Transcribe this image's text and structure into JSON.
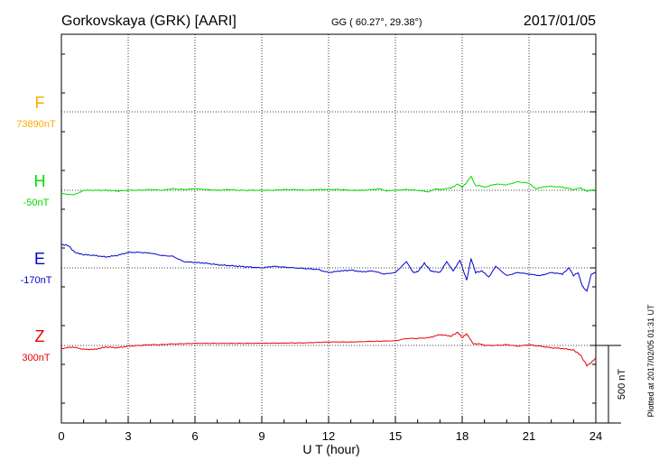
{
  "header": {
    "station": "Gorkovskaya (GRK)  [AARI]",
    "coords": "GG ( 60.27°,  29.38°)",
    "date": "2017/01/05"
  },
  "side_note": "Plotted at 2017/02/05 01:31  UT",
  "scale_label": "500 nT",
  "chart_data": {
    "type": "line",
    "xlabel": "U T (hour)",
    "ylabel": "",
    "xlim": [
      0,
      24
    ],
    "xticks": [
      0,
      3,
      6,
      9,
      12,
      15,
      18,
      21,
      24
    ],
    "xtick_labels": [
      "0",
      "3",
      "6",
      "9",
      "12",
      "15",
      "18",
      "21",
      "24"
    ],
    "scale_bar_nT": 500,
    "grid": true,
    "series": [
      {
        "name": "F",
        "baseline_label": "73890nT",
        "color": "#ffaa00",
        "x": [],
        "values": []
      },
      {
        "name": "H",
        "baseline_label": "-50nT",
        "color": "#00dd00",
        "x": [
          0,
          0.5,
          0.8,
          1,
          1.5,
          2,
          2.5,
          3,
          3.5,
          4,
          4.5,
          5,
          5.5,
          6,
          6.5,
          7,
          7.5,
          8,
          8.5,
          9,
          9.5,
          10,
          10.5,
          11,
          11.5,
          12,
          12.5,
          13,
          13.5,
          14,
          14.3,
          14.6,
          15,
          15.5,
          16,
          16.5,
          16.8,
          17,
          17.5,
          17.8,
          18.0,
          18.2,
          18.4,
          18.6,
          18.8,
          19.0,
          19.5,
          20,
          20.5,
          21,
          21.3,
          21.6,
          22,
          22.5,
          23,
          23.3,
          23.6,
          24
        ],
        "values": [
          -20,
          -30,
          -15,
          0,
          0,
          0,
          -5,
          0,
          0,
          5,
          0,
          10,
          5,
          10,
          5,
          0,
          5,
          0,
          0,
          0,
          0,
          5,
          5,
          0,
          5,
          5,
          5,
          0,
          0,
          5,
          10,
          -5,
          0,
          5,
          0,
          -10,
          10,
          5,
          15,
          40,
          20,
          50,
          90,
          30,
          30,
          20,
          40,
          35,
          55,
          45,
          10,
          20,
          25,
          20,
          5,
          15,
          -5,
          5
        ]
      },
      {
        "name": "E",
        "baseline_label": "-170nT",
        "color": "#0000cc",
        "x": [
          0,
          0.3,
          0.6,
          1,
          1.5,
          2,
          2.5,
          3,
          3.5,
          4,
          4.5,
          5,
          5.5,
          6,
          6.5,
          7,
          7.5,
          8,
          8.5,
          9,
          9.5,
          10,
          10.5,
          11,
          11.5,
          12,
          12.5,
          13,
          13.5,
          14,
          14.5,
          15,
          15.5,
          15.8,
          16,
          16.3,
          16.6,
          17,
          17.3,
          17.6,
          17.9,
          18.2,
          18.4,
          18.6,
          18.9,
          19.2,
          19.5,
          20,
          20.5,
          21,
          21.5,
          22,
          22.5,
          22.8,
          23,
          23.2,
          23.4,
          23.6,
          23.8,
          24
        ],
        "values": [
          150,
          145,
          100,
          85,
          80,
          70,
          80,
          100,
          100,
          95,
          80,
          75,
          40,
          35,
          30,
          20,
          15,
          10,
          5,
          0,
          10,
          5,
          0,
          -5,
          -10,
          -30,
          -20,
          -15,
          -25,
          -20,
          -40,
          -30,
          40,
          -30,
          -25,
          30,
          -20,
          -30,
          40,
          -20,
          50,
          -80,
          60,
          -30,
          -20,
          -60,
          10,
          -50,
          -30,
          -40,
          -50,
          -30,
          -40,
          0,
          -50,
          -30,
          -120,
          -150,
          -40,
          -30
        ]
      },
      {
        "name": "Z",
        "baseline_label": "300nT",
        "color": "#ee0000",
        "x": [
          0,
          0.5,
          1,
          1.5,
          2,
          2.5,
          3,
          3.5,
          4,
          4.5,
          5,
          6,
          7,
          8,
          9,
          10,
          11,
          12,
          13,
          14,
          15,
          15.5,
          16,
          16.5,
          17,
          17.5,
          17.8,
          18,
          18.2,
          18.5,
          18.8,
          19,
          19.5,
          20,
          20.5,
          21,
          21.5,
          22,
          22.5,
          23,
          23.3,
          23.6,
          23.8,
          24
        ],
        "values": [
          -20,
          -10,
          -25,
          -25,
          -10,
          -15,
          -5,
          0,
          5,
          5,
          10,
          15,
          15,
          15,
          15,
          15,
          15,
          20,
          20,
          25,
          30,
          45,
          45,
          50,
          70,
          60,
          85,
          50,
          75,
          10,
          10,
          0,
          0,
          5,
          -5,
          5,
          -5,
          -15,
          -20,
          -30,
          -60,
          -130,
          -110,
          -80
        ]
      }
    ]
  }
}
